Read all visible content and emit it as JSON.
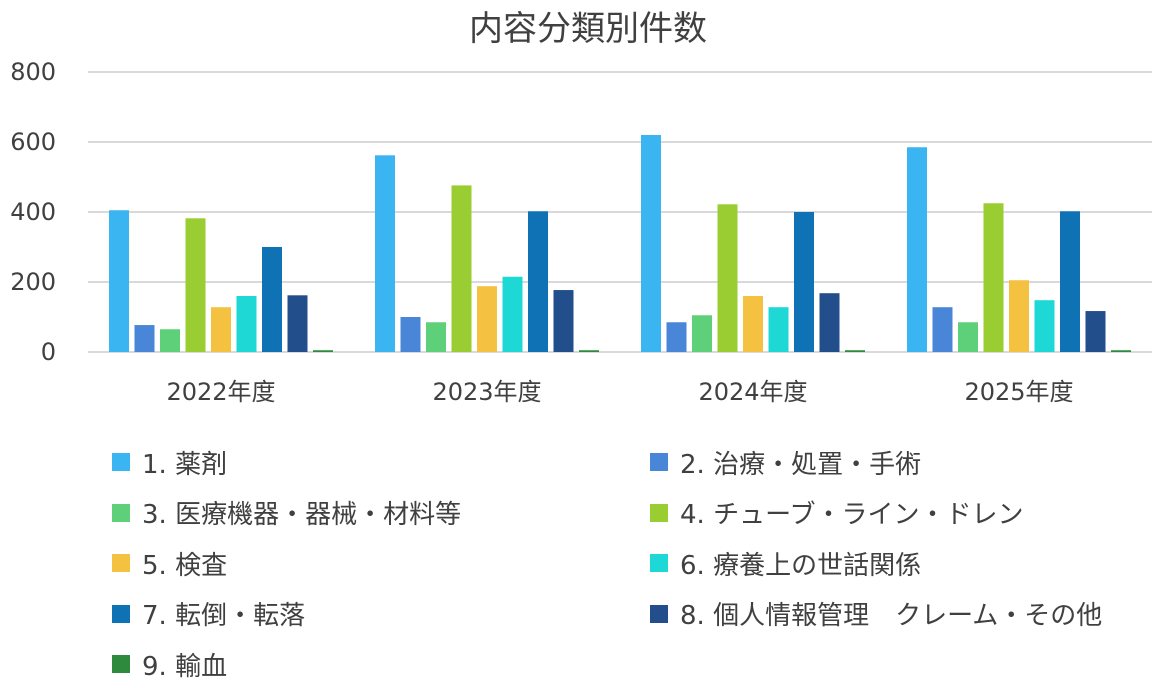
{
  "chart_data": {
    "type": "bar",
    "title": "内容分類別件数",
    "xlabel": "",
    "ylabel": "",
    "ylim": [
      0,
      800
    ],
    "yticks": [
      0,
      200,
      400,
      600,
      800
    ],
    "grid": true,
    "legend_position": "bottom",
    "categories": [
      "2022年度",
      "2023年度",
      "2024年度",
      "2025年度"
    ],
    "series": [
      {
        "name": "1. 薬剤",
        "color": "#3BB4F2",
        "values": [
          405,
          562,
          620,
          585
        ]
      },
      {
        "name": "2. 治療・処置・手術",
        "color": "#4A86D8",
        "values": [
          77,
          100,
          85,
          128
        ]
      },
      {
        "name": "3. 医療機器・器械・材料等",
        "color": "#5ED07A",
        "values": [
          65,
          85,
          105,
          85
        ]
      },
      {
        "name": "4. チューブ・ライン・ドレン",
        "color": "#9ACD32",
        "values": [
          382,
          476,
          422,
          425
        ]
      },
      {
        "name": "5. 検査",
        "color": "#F4C141",
        "values": [
          128,
          188,
          160,
          205
        ]
      },
      {
        "name": "6. 療養上の世話関係",
        "color": "#1ED8D6",
        "values": [
          160,
          215,
          128,
          148
        ]
      },
      {
        "name": "7. 転倒・転落",
        "color": "#0E72B5",
        "values": [
          300,
          402,
          400,
          402
        ]
      },
      {
        "name": "8. 個人情報管理　クレーム・その他",
        "color": "#234E8C",
        "values": [
          162,
          177,
          168,
          117
        ]
      },
      {
        "name": "9. 輸血",
        "color": "#2E8B3E",
        "values": [
          5,
          5,
          5,
          5
        ]
      }
    ]
  }
}
